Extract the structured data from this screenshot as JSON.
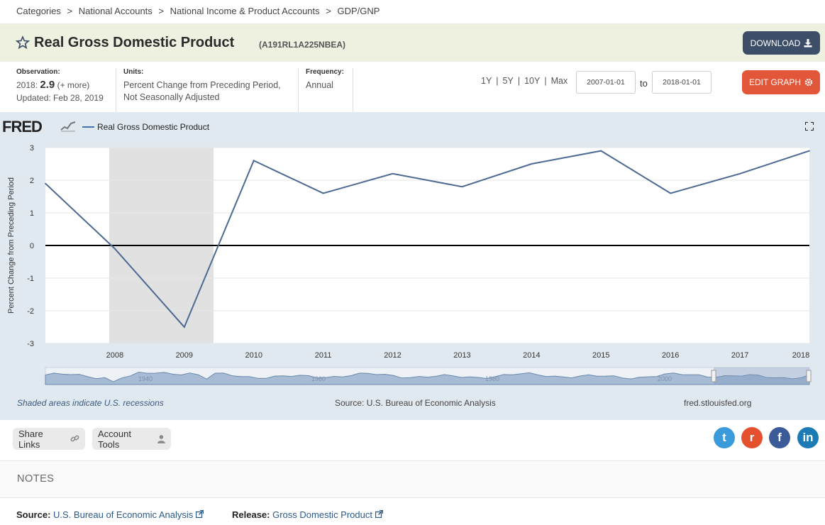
{
  "breadcrumb": {
    "items": [
      "Categories",
      "National Accounts",
      "National Income & Product Accounts",
      "GDP/GNP"
    ],
    "separator": ">"
  },
  "header": {
    "title": "Real Gross Domestic Product",
    "series_id": "(A191RL1A225NBEA)",
    "download_label": "DOWNLOAD"
  },
  "observation": {
    "label": "Observation:",
    "year": "2018:",
    "value": "2.9",
    "more": "(+ more)",
    "updated": "Updated: Feb 28, 2019"
  },
  "units": {
    "label": "Units:",
    "line1": "Percent Change from Preceding Period,",
    "line2": "Not Seasonally Adjusted"
  },
  "frequency": {
    "label": "Frequency:",
    "value": "Annual"
  },
  "range_buttons": [
    "1Y",
    "5Y",
    "10Y",
    "Max"
  ],
  "date_range": {
    "start": "2007-01-01",
    "to_label": "to",
    "end": "2018-01-01"
  },
  "edit_graph_label": "EDIT GRAPH",
  "graph": {
    "logo": "FRED",
    "legend_label": "Real Gross Domestic Product",
    "shaded_note": "Shaded areas indicate U.S. recessions",
    "source": "Source: U.S. Bureau of Economic Analysis",
    "site": "fred.stlouisfed.org",
    "slider_labels": [
      "1940",
      "1960",
      "1980",
      "2000"
    ]
  },
  "chart_data": {
    "type": "line",
    "x": [
      2007,
      2008,
      2009,
      2010,
      2011,
      2012,
      2013,
      2014,
      2015,
      2016,
      2017,
      2018
    ],
    "series": [
      {
        "name": "Real Gross Domestic Product",
        "values": [
          1.9,
          -0.1,
          -2.5,
          2.6,
          1.6,
          2.2,
          1.8,
          2.5,
          2.9,
          1.6,
          2.2,
          2.9
        ],
        "color": "#4c6a92"
      }
    ],
    "xticks": [
      "2008",
      "2009",
      "2010",
      "2011",
      "2012",
      "2013",
      "2014",
      "2015",
      "2016",
      "2017",
      "2018"
    ],
    "yticks": [
      "3",
      "2",
      "1",
      "0",
      "-1",
      "-2",
      "-3"
    ],
    "ylabel": "Percent Change from Preceding Period",
    "xlabel": "",
    "ylim": [
      -3,
      3
    ],
    "xlim": [
      2007,
      2018
    ],
    "recession_x": [
      2007.92,
      2009.42
    ],
    "grid": true,
    "legend": "top-left"
  },
  "actions": {
    "share_links": "Share Links",
    "account_tools": "Account Tools"
  },
  "social": [
    {
      "name": "twitter",
      "glyph": "t",
      "color": "#3b9ad9"
    },
    {
      "name": "reddit",
      "glyph": "r",
      "color": "#e5512f"
    },
    {
      "name": "facebook",
      "glyph": "f",
      "color": "#3b5a98"
    },
    {
      "name": "linkedin",
      "glyph": "in",
      "color": "#1c7ab5"
    }
  ],
  "notes": {
    "heading": "NOTES",
    "source_label": "Source:",
    "source_value": "U.S. Bureau of Economic Analysis",
    "release_label": "Release:",
    "release_value": "Gross Domestic Product"
  }
}
